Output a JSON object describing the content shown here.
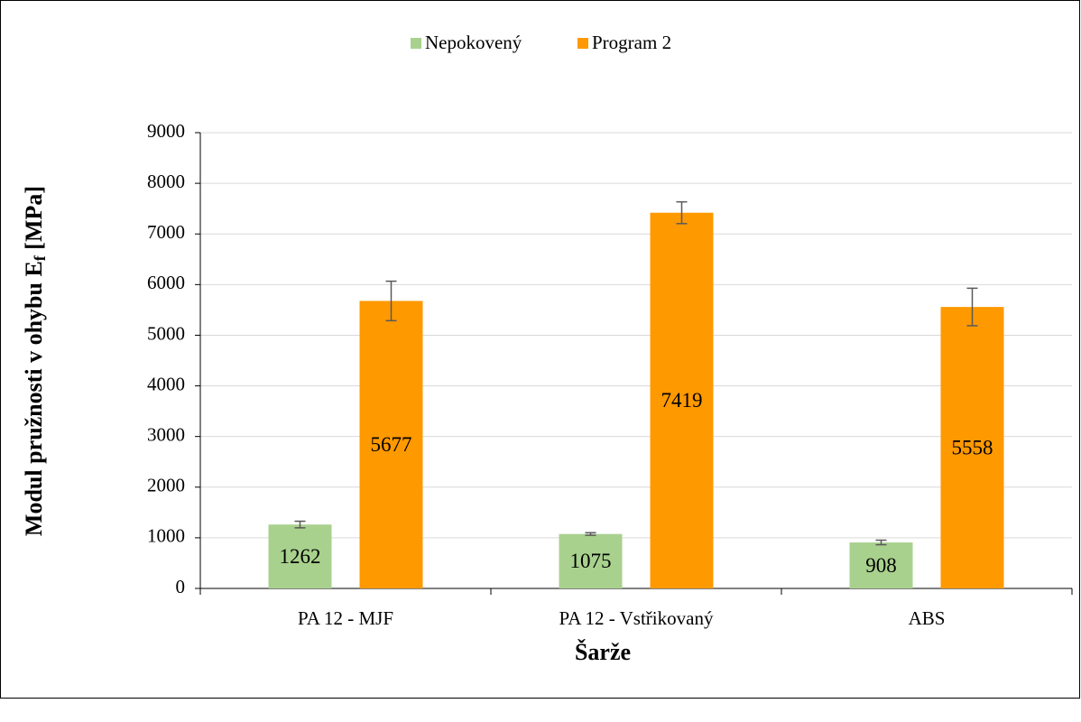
{
  "chart_data": {
    "type": "bar",
    "categories": [
      "PA 12 - MJF",
      "PA 12 - Vstřikovaný",
      "ABS"
    ],
    "series": [
      {
        "name": "Nepokovený",
        "color": "#a9d18e",
        "values": [
          1262,
          1075,
          908
        ],
        "errors": [
          65,
          25,
          45
        ]
      },
      {
        "name": "Program 2",
        "color": "#ff9900",
        "values": [
          5677,
          7419,
          5558
        ],
        "errors": [
          390,
          215,
          370
        ]
      }
    ],
    "xlabel": "Šarže",
    "ylabel": {
      "text": "Modul pružnosti v ohybu E",
      "sub": "f",
      "suffix": " [MPa]"
    },
    "ylim": [
      0,
      9000
    ],
    "yticks": [
      0,
      1000,
      2000,
      3000,
      4000,
      5000,
      6000,
      7000,
      8000,
      9000
    ],
    "grid": true,
    "legend": "top"
  }
}
